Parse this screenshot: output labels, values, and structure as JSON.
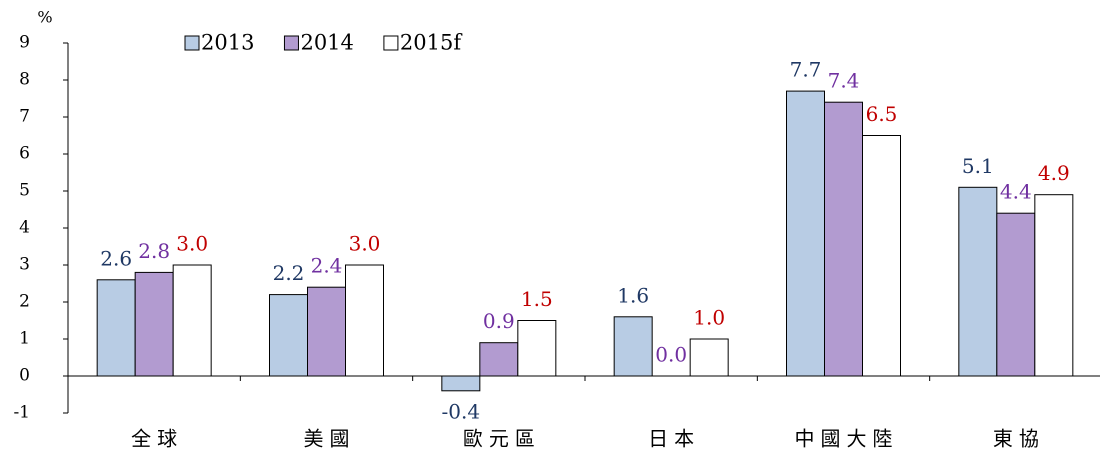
{
  "chart_data": {
    "type": "bar",
    "y_label": "%",
    "categories": [
      "全球",
      "美國",
      "歐元區",
      "日本",
      "中國大陸",
      "東協"
    ],
    "series": [
      {
        "name": "2013",
        "color": "#b8cce4",
        "label_color": "#1f3864",
        "values": [
          2.6,
          2.2,
          -0.4,
          1.6,
          7.7,
          5.1
        ],
        "value_labels": [
          "2.6",
          "2.2",
          "-0.4",
          "1.6",
          "7.7",
          "5.1"
        ]
      },
      {
        "name": "2014",
        "color": "#b29bd0",
        "label_color": "#7030a0",
        "values": [
          2.8,
          2.4,
          0.9,
          0.0,
          7.4,
          4.4
        ],
        "value_labels": [
          "2.8",
          "2.4",
          "0.9",
          "0.0",
          "7.4",
          "4.4"
        ]
      },
      {
        "name": "2015f",
        "color": "#ffffff",
        "label_color": "#c00000",
        "values": [
          3.0,
          3.0,
          1.5,
          1.0,
          6.5,
          4.9
        ],
        "value_labels": [
          "3.0",
          "3.0",
          "1.5",
          "1.0",
          "6.5",
          "4.9"
        ]
      }
    ],
    "ylim": [
      -1,
      9
    ],
    "yticks": [
      -1,
      0,
      1,
      2,
      3,
      4,
      5,
      6,
      7,
      8,
      9
    ],
    "grid": false,
    "legend": "top"
  }
}
